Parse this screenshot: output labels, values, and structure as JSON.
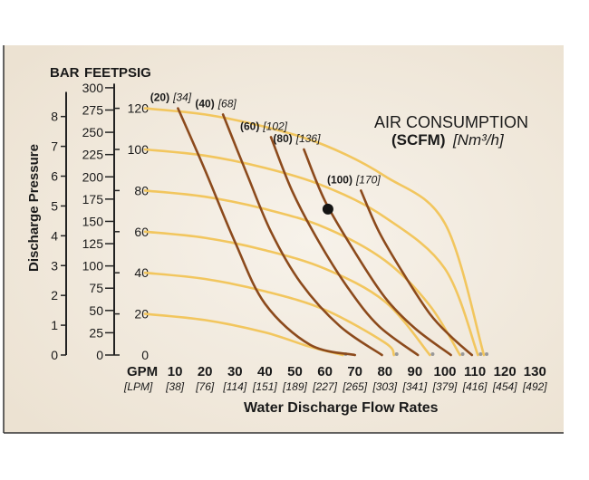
{
  "chart_data": {
    "type": "line",
    "title": "AIR CONSUMPTION",
    "subtitle_bold": "(SCFM)",
    "subtitle_unit": "[Nm³/h]",
    "xlabel": "Water Discharge Flow Rates",
    "ylabel": "Discharge Pressure",
    "x_units_label": "GPM",
    "x_alt_units_label": "[LPM]",
    "xlim": [
      0,
      130
    ],
    "ylim": [
      0,
      120
    ],
    "x_ticks": [
      {
        "gpm": "10",
        "lpm": "[38]"
      },
      {
        "gpm": "20",
        "lpm": "[76]"
      },
      {
        "gpm": "30",
        "lpm": "[114]"
      },
      {
        "gpm": "40",
        "lpm": "[151]"
      },
      {
        "gpm": "50",
        "lpm": "[189]"
      },
      {
        "gpm": "60",
        "lpm": "[227]"
      },
      {
        "gpm": "70",
        "lpm": "[265]"
      },
      {
        "gpm": "80",
        "lpm": "[303]"
      },
      {
        "gpm": "90",
        "lpm": "[341]"
      },
      {
        "gpm": "100",
        "lpm": "[379]"
      },
      {
        "gpm": "110",
        "lpm": "[416]"
      },
      {
        "gpm": "120",
        "lpm": "[454]"
      },
      {
        "gpm": "130",
        "lpm": "[492]"
      }
    ],
    "axes_headers": [
      "BAR",
      "FEET",
      "PSIG"
    ],
    "psig_ticks": [
      "0",
      "20",
      "40",
      "60",
      "80",
      "100",
      "120"
    ],
    "feet_ticks": [
      "0",
      "25",
      "50",
      "75",
      "100",
      "125",
      "150",
      "175",
      "200",
      "225",
      "250",
      "275",
      "300"
    ],
    "bar_ticks": [
      "0",
      "1",
      "2",
      "3",
      "4",
      "5",
      "6",
      "7",
      "8"
    ],
    "performance_curves": [
      {
        "psig_shutoff": 120,
        "points": [
          [
            0,
            120
          ],
          [
            20,
            117
          ],
          [
            40,
            111
          ],
          [
            60,
            102
          ],
          [
            80,
            87
          ],
          [
            100,
            64
          ],
          [
            113,
            0
          ]
        ]
      },
      {
        "psig_shutoff": 100,
        "points": [
          [
            0,
            100
          ],
          [
            20,
            97
          ],
          [
            40,
            91
          ],
          [
            60,
            82
          ],
          [
            80,
            67
          ],
          [
            100,
            42
          ],
          [
            111,
            0
          ]
        ]
      },
      {
        "psig_shutoff": 80,
        "points": [
          [
            0,
            80
          ],
          [
            20,
            77
          ],
          [
            40,
            71
          ],
          [
            60,
            62
          ],
          [
            80,
            46
          ],
          [
            95,
            24
          ],
          [
            105,
            0
          ]
        ]
      },
      {
        "psig_shutoff": 60,
        "points": [
          [
            0,
            60
          ],
          [
            20,
            57
          ],
          [
            40,
            51
          ],
          [
            60,
            42
          ],
          [
            80,
            26
          ],
          [
            95,
            0
          ]
        ]
      },
      {
        "psig_shutoff": 40,
        "points": [
          [
            0,
            40
          ],
          [
            20,
            37
          ],
          [
            40,
            31
          ],
          [
            60,
            22
          ],
          [
            80,
            6
          ],
          [
            83,
            0
          ]
        ]
      },
      {
        "psig_shutoff": 20,
        "points": [
          [
            0,
            20
          ],
          [
            20,
            17
          ],
          [
            40,
            11
          ],
          [
            55,
            4
          ],
          [
            66,
            0
          ]
        ]
      }
    ],
    "air_consumption_curves": [
      {
        "scfm": "(20)",
        "nm3h": "[34]",
        "points": [
          [
            11,
            120
          ],
          [
            20,
            90
          ],
          [
            30,
            55
          ],
          [
            40,
            25
          ],
          [
            55,
            5
          ],
          [
            70,
            0
          ]
        ]
      },
      {
        "scfm": "(40)",
        "nm3h": "[68]",
        "points": [
          [
            26,
            117
          ],
          [
            34,
            88
          ],
          [
            42,
            60
          ],
          [
            52,
            35
          ],
          [
            65,
            14
          ],
          [
            79,
            0
          ]
        ]
      },
      {
        "scfm": "(60)",
        "nm3h": "[102]",
        "points": [
          [
            42,
            106
          ],
          [
            49,
            80
          ],
          [
            58,
            55
          ],
          [
            68,
            32
          ],
          [
            78,
            14
          ],
          [
            91,
            0
          ]
        ]
      },
      {
        "scfm": "(80)",
        "nm3h": "[136]",
        "points": [
          [
            53,
            100
          ],
          [
            60,
            75
          ],
          [
            70,
            50
          ],
          [
            80,
            28
          ],
          [
            90,
            13
          ],
          [
            102,
            0
          ]
        ]
      },
      {
        "scfm": "(100)",
        "nm3h": "[170]",
        "points": [
          [
            72,
            80
          ],
          [
            78,
            60
          ],
          [
            86,
            40
          ],
          [
            95,
            20
          ],
          [
            102,
            9
          ],
          [
            109,
            0
          ]
        ]
      }
    ],
    "marker": {
      "gpm": 61,
      "psig": 71
    },
    "colors": {
      "performance": "#f2c65e",
      "air": "#8c4a1c",
      "marker": "#141414",
      "background": "#f2ebe0",
      "axis": "#222222"
    }
  }
}
